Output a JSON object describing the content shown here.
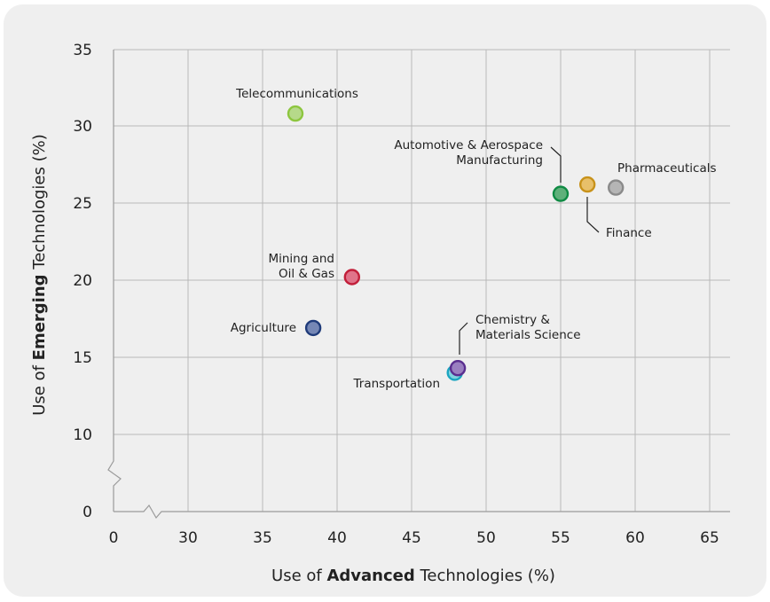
{
  "chart_data": {
    "type": "scatter",
    "xlabel": {
      "prefix": "Use of ",
      "bold": "Advanced",
      "suffix": " Technologies (%)"
    },
    "ylabel": {
      "prefix": "Use of ",
      "bold": "Emerging",
      "suffix": " Technologies (%)"
    },
    "xlim": [
      25,
      65
    ],
    "ylim": [
      7,
      35
    ],
    "x_axis_break": true,
    "y_axis_break": true,
    "x_ticks": [
      0,
      30,
      35,
      40,
      45,
      50,
      55,
      60,
      65
    ],
    "y_ticks": [
      0,
      10,
      15,
      20,
      25,
      30,
      35
    ],
    "grid": true,
    "points": [
      {
        "name": "Telecommunications",
        "x": 37.2,
        "y": 30.8,
        "color": "#b6d98a",
        "stroke": "#8dc63f"
      },
      {
        "name": "Automotive & Aerospace Manufacturing",
        "x": 55.0,
        "y": 25.6,
        "color": "#5fb07a",
        "stroke": "#0f8a43"
      },
      {
        "name": "Finance",
        "x": 56.8,
        "y": 26.2,
        "color": "#e8c06a",
        "stroke": "#c8921a"
      },
      {
        "name": "Pharmaceuticals",
        "x": 58.7,
        "y": 26.0,
        "color": "#b5b5b5",
        "stroke": "#8a8a8a"
      },
      {
        "name": "Mining and Oil & Gas",
        "x": 41.0,
        "y": 20.2,
        "color": "#e0748a",
        "stroke": "#c21f3a"
      },
      {
        "name": "Agriculture",
        "x": 38.4,
        "y": 16.9,
        "color": "#7587b5",
        "stroke": "#1f3b7a"
      },
      {
        "name": "Transportation",
        "x": 47.9,
        "y": 14.0,
        "color": "#7fd3e0",
        "stroke": "#1aa5c0"
      },
      {
        "name": "Chemistry & Materials Science",
        "x": 48.1,
        "y": 14.3,
        "color": "#9a7fc0",
        "stroke": "#5a2e8f"
      }
    ],
    "labels": {
      "telecom": "Telecommunications",
      "auto_line1": "Automotive & Aerospace",
      "auto_line2": "Manufacturing",
      "finance": "Finance",
      "pharma": "Pharmaceuticals",
      "mining_line1": "Mining and",
      "mining_line2": "Oil & Gas",
      "agriculture": "Agriculture",
      "transportation": "Transportation",
      "chem_line1": "Chemistry &",
      "chem_line2": "Materials Science"
    }
  }
}
